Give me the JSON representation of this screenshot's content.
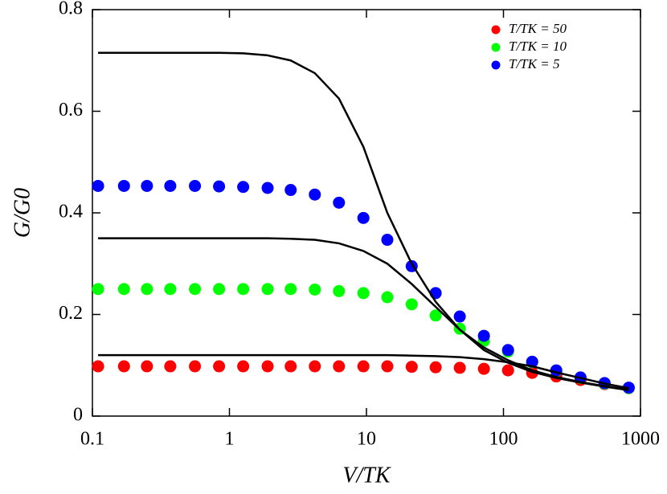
{
  "chart_data": {
    "type": "scatter",
    "xlabel": "V/TK",
    "ylabel": "G/G0",
    "xlog": true,
    "xlim": [
      0.1,
      1000
    ],
    "xticks": [
      0.1,
      1,
      10,
      100,
      1000
    ],
    "ylim": [
      0,
      0.8
    ],
    "yticks": [
      0,
      0.2,
      0.4,
      0.6,
      0.8
    ],
    "legend": "upper right",
    "x": [
      0.11,
      0.17,
      0.25,
      0.37,
      0.56,
      0.84,
      1.26,
      1.9,
      2.8,
      4.2,
      6.3,
      9.5,
      14.2,
      21.4,
      32,
      48,
      72,
      108,
      162,
      243,
      365,
      547,
      821
    ],
    "series": [
      {
        "name": "T/TK = 50",
        "color": "#ff0000",
        "values": [
          0.098,
          0.098,
          0.098,
          0.098,
          0.098,
          0.098,
          0.098,
          0.098,
          0.098,
          0.098,
          0.098,
          0.098,
          0.098,
          0.097,
          0.096,
          0.095,
          0.093,
          0.09,
          0.085,
          0.078,
          0.071,
          0.063,
          0.055
        ]
      },
      {
        "name": "T/TK = 10",
        "color": "#00ff00",
        "values": [
          0.25,
          0.25,
          0.25,
          0.25,
          0.25,
          0.25,
          0.25,
          0.25,
          0.25,
          0.249,
          0.246,
          0.242,
          0.234,
          0.22,
          0.198,
          0.172,
          0.148,
          0.127,
          0.106,
          0.089,
          0.075,
          0.064,
          0.055
        ]
      },
      {
        "name": "T/TK = 5",
        "color": "#0000ff",
        "values": [
          0.453,
          0.453,
          0.453,
          0.453,
          0.453,
          0.452,
          0.451,
          0.449,
          0.445,
          0.436,
          0.42,
          0.39,
          0.347,
          0.295,
          0.242,
          0.196,
          0.158,
          0.13,
          0.107,
          0.09,
          0.076,
          0.065,
          0.056
        ]
      }
    ],
    "curves": [
      {
        "color": "#000000",
        "values": [
          0.12,
          0.12,
          0.12,
          0.12,
          0.12,
          0.12,
          0.12,
          0.12,
          0.12,
          0.12,
          0.12,
          0.12,
          0.12,
          0.119,
          0.118,
          0.116,
          0.112,
          0.106,
          0.098,
          0.086,
          0.075,
          0.064,
          0.055
        ]
      },
      {
        "color": "#000000",
        "values": [
          0.35,
          0.35,
          0.35,
          0.35,
          0.35,
          0.35,
          0.35,
          0.35,
          0.349,
          0.347,
          0.34,
          0.325,
          0.3,
          0.26,
          0.215,
          0.17,
          0.135,
          0.11,
          0.09,
          0.077,
          0.067,
          0.059,
          0.052
        ]
      },
      {
        "color": "#000000",
        "values": [
          0.715,
          0.715,
          0.715,
          0.715,
          0.715,
          0.715,
          0.714,
          0.71,
          0.7,
          0.675,
          0.625,
          0.53,
          0.4,
          0.3,
          0.225,
          0.17,
          0.13,
          0.105,
          0.087,
          0.075,
          0.066,
          0.058,
          0.051
        ]
      }
    ]
  }
}
